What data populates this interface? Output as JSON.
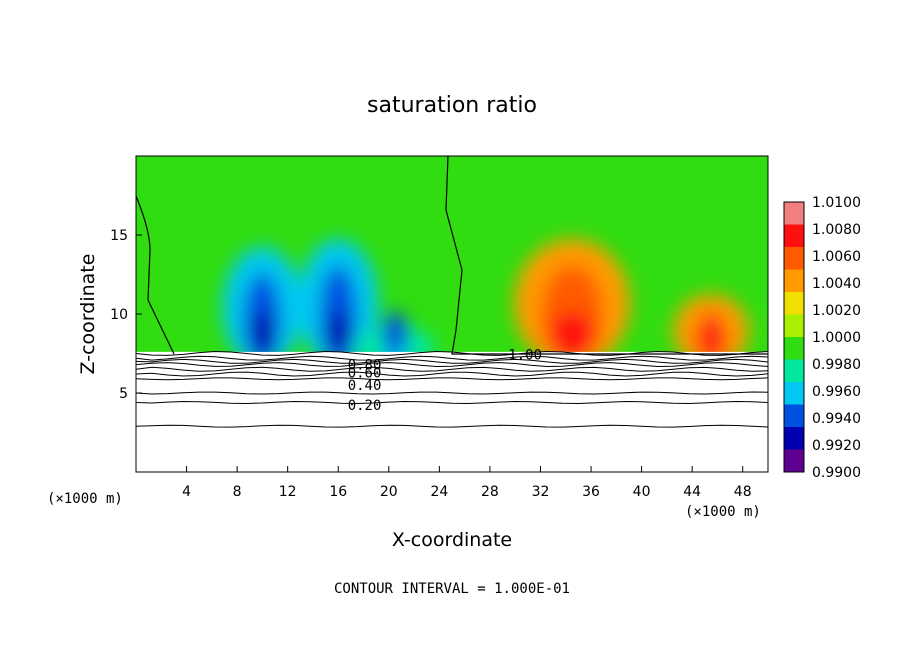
{
  "chart_data": {
    "type": "heatmap",
    "title": "saturation ratio",
    "xlabel": "X-coordinate",
    "ylabel": "Z-coordinate",
    "x_unit_left": "(×1000 m)",
    "x_unit_right": "(×1000 m)",
    "xlim": [
      0,
      50
    ],
    "ylim": [
      0,
      20
    ],
    "x_ticks": [
      4,
      8,
      12,
      16,
      20,
      24,
      28,
      32,
      36,
      40,
      44,
      48
    ],
    "x_tick_labels": [
      "4",
      "8",
      "12",
      "16",
      "20",
      "24",
      "28",
      "32",
      "36",
      "40",
      "44",
      "48"
    ],
    "y_ticks": [
      5,
      10,
      15
    ],
    "y_tick_labels": [
      "5",
      "10",
      "15"
    ],
    "footer": "CONTOUR INTERVAL = 1.000E-01",
    "colorbar": {
      "range": [
        0.99,
        1.01
      ],
      "labels": [
        "1.0100",
        "1.0080",
        "1.0060",
        "1.0040",
        "1.0020",
        "1.0000",
        "0.9980",
        "0.9960",
        "0.9940",
        "0.9920",
        "0.9900"
      ],
      "colors": [
        "#f08080",
        "#ff1010",
        "#ff5a00",
        "#ff9a00",
        "#f0e000",
        "#aaee00",
        "#30dd10",
        "#00e8a0",
        "#00c8f0",
        "#0050e0",
        "#0000b0",
        "#600090"
      ]
    },
    "contour_labels": [
      {
        "text": "1.00",
        "x": 28.5,
        "z": 7.45
      },
      {
        "text": "0.80",
        "x": 15.8,
        "z": 6.8
      },
      {
        "text": "0.60",
        "x": 15.8,
        "z": 6.3
      },
      {
        "text": "0.40",
        "x": 15.8,
        "z": 5.5
      },
      {
        "text": "0.20",
        "x": 15.8,
        "z": 4.25
      }
    ],
    "contour_lines_z": [
      7.5,
      7.2,
      7.0,
      6.8,
      6.5,
      6.2,
      5.9,
      5.0,
      4.4,
      2.9
    ],
    "ground_z": 7.6,
    "features": [
      {
        "kind": "subsaturated",
        "x": 10,
        "z_top": 14.5,
        "min_value": 0.991
      },
      {
        "kind": "subsaturated",
        "x": 16,
        "z_top": 15.0,
        "min_value": 0.9925
      },
      {
        "kind": "subsaturated",
        "x": 20.5,
        "z_top": 9.5,
        "min_value": 0.993
      },
      {
        "kind": "supersaturated",
        "x": 34.5,
        "z_top": 15.0,
        "max_value": 1.008
      },
      {
        "kind": "supersaturated",
        "x": 45.5,
        "z_top": 11.5,
        "max_value": 1.0075
      }
    ]
  }
}
